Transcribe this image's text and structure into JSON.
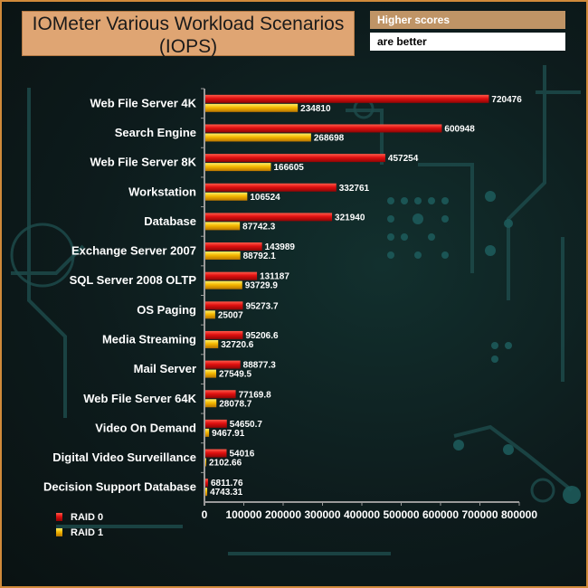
{
  "title_lines": [
    "IOMeter Various Workload Scenarios",
    "(IOPS)"
  ],
  "note": {
    "line1": "Higher scores",
    "line2": "are better"
  },
  "colors": {
    "raid0": "#d81010",
    "raid1": "#f5b800",
    "border": "#d08a3a",
    "title_bg": "#dfa573"
  },
  "chart_data": {
    "type": "bar",
    "orientation": "horizontal",
    "categories": [
      "Web File Server 4K",
      "Search Engine",
      "Web File Server 8K",
      "Workstation",
      "Database",
      "Exchange Server 2007",
      "SQL Server 2008 OLTP",
      "OS Paging",
      "Media Streaming",
      "Mail Server",
      "Web File Server 64K",
      "Video On Demand",
      "Digital Video Surveillance",
      "Decision Support Database"
    ],
    "series": [
      {
        "name": "RAID 0",
        "values": [
          720476,
          600948,
          457254,
          332761,
          321940,
          143989,
          131187,
          95273.7,
          95206.6,
          88877.3,
          77169.8,
          54650.7,
          54016,
          6811.76
        ],
        "labels": [
          "720476",
          "600948",
          "457254",
          "332761",
          "321940",
          "143989",
          "131187",
          "95273.7",
          "95206.6",
          "88877.3",
          "77169.8",
          "54650.7",
          "54016",
          "6811.76"
        ]
      },
      {
        "name": "RAID 1",
        "values": [
          234810,
          268698,
          166605,
          106524,
          87742.3,
          88792.1,
          93729.9,
          25007,
          32720.6,
          27549.5,
          28078.7,
          9467.91,
          2102.66,
          4743.31
        ],
        "labels": [
          "234810",
          "268698",
          "166605",
          "106524",
          "87742.3",
          "88792.1",
          "93729.9",
          "25007",
          "32720.6",
          "27549.5",
          "28078.7",
          "9467.91",
          "2102.66",
          "4743.31"
        ]
      }
    ],
    "xlim": [
      0,
      800000
    ],
    "xticks": [
      "0",
      "100000",
      "200000",
      "300000",
      "400000",
      "500000",
      "600000",
      "700000",
      "800000"
    ],
    "legend_position": "bottom-left",
    "grid": false
  }
}
